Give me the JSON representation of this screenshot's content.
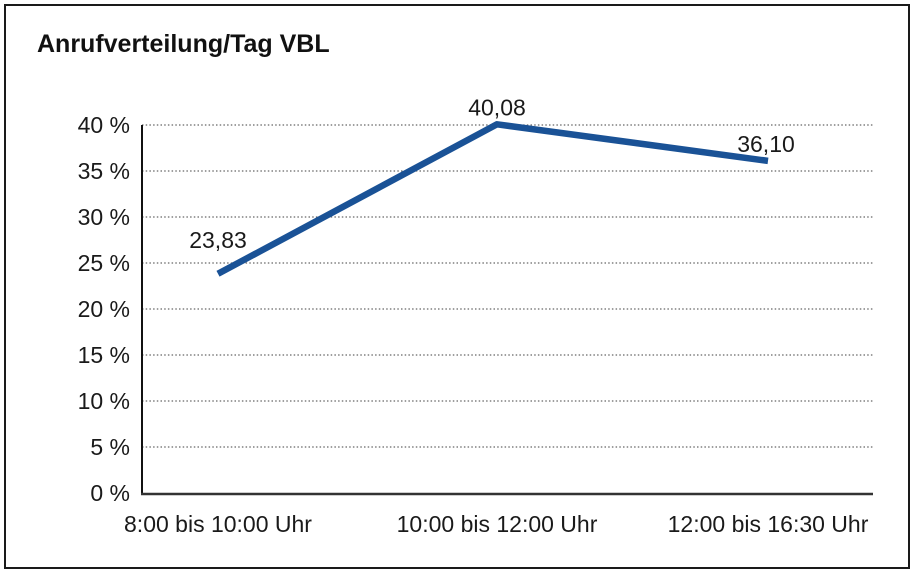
{
  "title": "Anrufverteilung/Tag VBL",
  "chart_data": {
    "type": "line",
    "title": "Anrufverteilung/Tag VBL",
    "categories": [
      "8:00 bis 10:00 Uhr",
      "10:00 bis 12:00 Uhr",
      "12:00 bis 16:30 Uhr"
    ],
    "values": [
      23.83,
      40.08,
      36.1
    ],
    "value_labels": [
      "23,83",
      "40,08",
      "36,10"
    ],
    "xlabel": "",
    "ylabel": "",
    "ylim": [
      0,
      40
    ],
    "y_tick_step": 5,
    "y_tick_labels": [
      "0 %",
      "5 %",
      "10 %",
      "15 %",
      "20 %",
      "25 %",
      "30 %",
      "35 %",
      "40 %"
    ],
    "grid": "horizontal-dotted",
    "legend_position": "none",
    "line_color": "#1A5296"
  },
  "colors": {
    "background": "#FFFFFF",
    "border": "#1A1A1A",
    "text": "#1A1A1A",
    "gridline": "#666666",
    "axis": "#333333",
    "series_line": "#1A5296"
  }
}
